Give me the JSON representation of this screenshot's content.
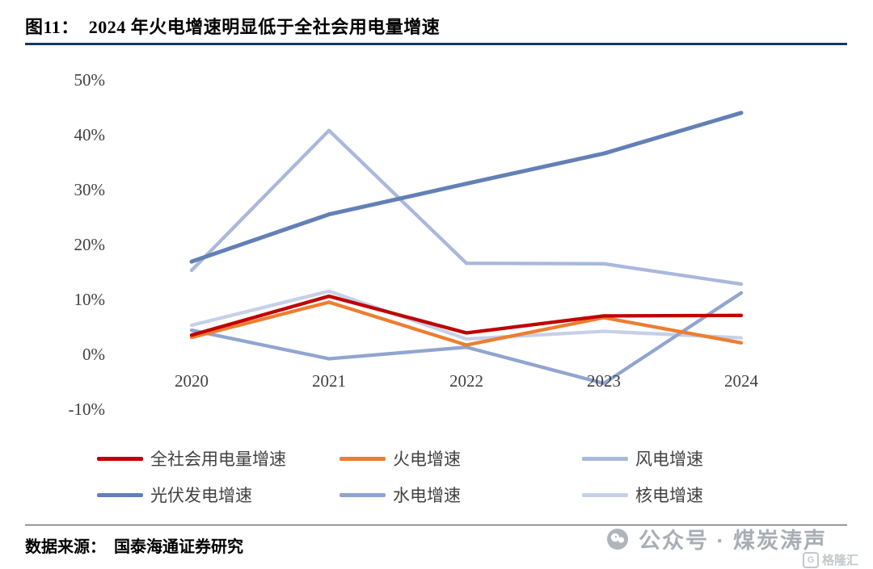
{
  "header": {
    "title": "图11：  2024 年火电增速明显低于全社会用电量增速"
  },
  "footer": {
    "source": "数据来源：  国泰海通证券研究"
  },
  "watermark": {
    "text": "公众号 · 煤炭涛声",
    "glh_icon_letter": "G",
    "glh_text": "格隆汇"
  },
  "colors": {
    "title_rule": "#17375e",
    "axis_text": "#404040",
    "watermark_gray": "#a9aeb5"
  },
  "chart_data": {
    "type": "line",
    "title": "2024 年火电增速明显低于全社会用电量增速",
    "categories": [
      "2020",
      "2021",
      "2022",
      "2023",
      "2024"
    ],
    "series": [
      {
        "name": "全社会用电量增速",
        "color": "#c00000",
        "values": [
          3.2,
          10.3,
          3.6,
          6.7,
          6.8
        ]
      },
      {
        "name": "火电增速",
        "color": "#ed7d31",
        "values": [
          2.8,
          9.2,
          1.4,
          6.4,
          1.8
        ]
      },
      {
        "name": "风电增速",
        "color": "#a9b8dc",
        "values": [
          15.0,
          40.5,
          16.3,
          16.2,
          12.5
        ]
      },
      {
        "name": "光伏发电增速",
        "color": "#6380b6",
        "values": [
          16.6,
          25.2,
          30.8,
          36.3,
          43.7
        ]
      },
      {
        "name": "水电增速",
        "color": "#90a5cf",
        "values": [
          4.1,
          -1.1,
          1.0,
          -5.6,
          10.9
        ]
      },
      {
        "name": "核电增速",
        "color": "#c6d0e7",
        "values": [
          5.0,
          11.2,
          2.5,
          3.9,
          2.7
        ]
      }
    ],
    "y_ticks": [
      "50%",
      "40%",
      "30%",
      "20%",
      "10%",
      "0%",
      "-10%"
    ],
    "ylim": [
      -10,
      50
    ],
    "xlabel": "",
    "ylabel": "",
    "grid": false,
    "legend_position": "bottom",
    "legend_rows": [
      [
        0,
        1,
        2
      ],
      [
        3,
        4,
        5
      ]
    ]
  }
}
